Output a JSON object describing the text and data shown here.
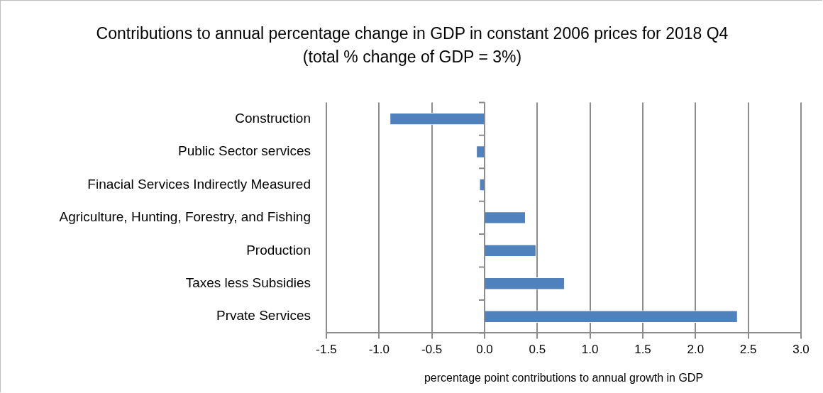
{
  "chart_data": {
    "type": "bar",
    "orientation": "horizontal",
    "title": "Contributions to annual percentage change in GDP in constant 2006 prices for 2018 Q4 (total % change of GDP = 3%)",
    "xlabel": "percentage point contributions to annual growth in GDP",
    "categories": [
      "Construction",
      "Public Sector services",
      "Finacial Services Indirectly Measured",
      "Agriculture, Hunting, Forestry, and Fishing",
      "Production",
      "Taxes less Subsidies",
      "Prvate Services"
    ],
    "values": [
      -0.9,
      -0.08,
      -0.05,
      0.39,
      0.49,
      0.76,
      2.4
    ],
    "color": "#4f81bd",
    "xlim": [
      -1.5,
      3.0
    ],
    "xticks": [
      {
        "value": -1.5,
        "label": "-1.5"
      },
      {
        "value": -1,
        "label": "-1.0"
      },
      {
        "value": -0.5,
        "label": "-0.5"
      },
      {
        "value": 0,
        "label": "0.0"
      },
      {
        "value": 0.5,
        "label": "0.5"
      },
      {
        "value": 1,
        "label": "1.0"
      },
      {
        "value": 1.5,
        "label": "1.5"
      },
      {
        "value": 2,
        "label": "2.0"
      },
      {
        "value": 2.5,
        "label": "2.5"
      },
      {
        "value": 3,
        "label": "3.0"
      }
    ],
    "grid": "x",
    "legend": false
  }
}
